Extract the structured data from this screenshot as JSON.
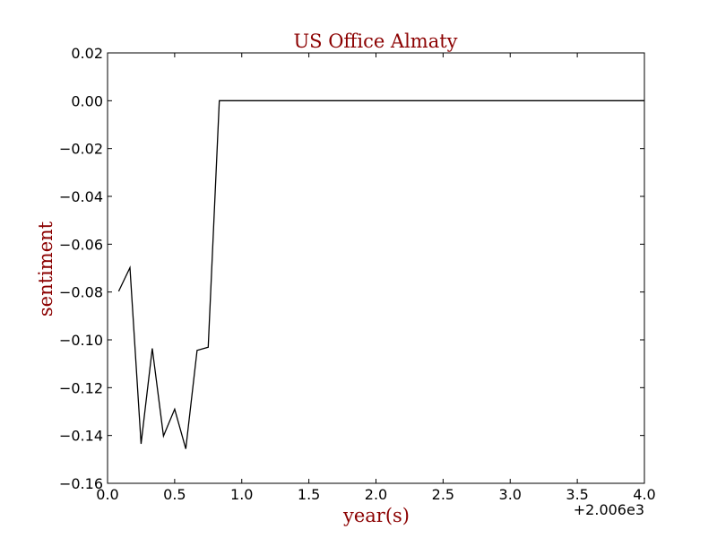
{
  "chart_data": {
    "type": "line",
    "title": "US Office Almaty",
    "xlabel": "year(s)",
    "ylabel": "sentiment",
    "x_offset_label": "+2.006e3",
    "xlim": [
      0.0,
      4.0
    ],
    "ylim": [
      -0.16,
      0.02
    ],
    "x_ticks": [
      0.0,
      0.5,
      1.0,
      1.5,
      2.0,
      2.5,
      3.0,
      3.5,
      4.0
    ],
    "x_tick_labels": [
      "0.0",
      "0.5",
      "1.0",
      "1.5",
      "2.0",
      "2.5",
      "3.0",
      "3.5",
      "4.0"
    ],
    "y_ticks": [
      0.02,
      0.0,
      -0.02,
      -0.04,
      -0.06,
      -0.08,
      -0.1,
      -0.12,
      -0.14,
      -0.16
    ],
    "y_tick_labels": [
      "0.02",
      "0.00",
      "−0.02",
      "−0.04",
      "−0.06",
      "−0.08",
      "−0.10",
      "−0.12",
      "−0.14",
      "−0.16"
    ],
    "grid": false,
    "series": [
      {
        "x": [
          0.083,
          0.167,
          0.25,
          0.333,
          0.417,
          0.5,
          0.583,
          0.667,
          0.75,
          0.833,
          0.917,
          1.0,
          2.0,
          3.0,
          4.0
        ],
        "y": [
          -0.0797,
          -0.0698,
          -0.1435,
          -0.1036,
          -0.1402,
          -0.129,
          -0.1456,
          -0.1044,
          -0.1031,
          0.0,
          0.0,
          0.0,
          0.0,
          0.0,
          0.0
        ]
      }
    ],
    "colors": {
      "line": "#000000",
      "title": "#8b0000",
      "axis_label": "#8b0000",
      "frame": "#000000"
    }
  }
}
